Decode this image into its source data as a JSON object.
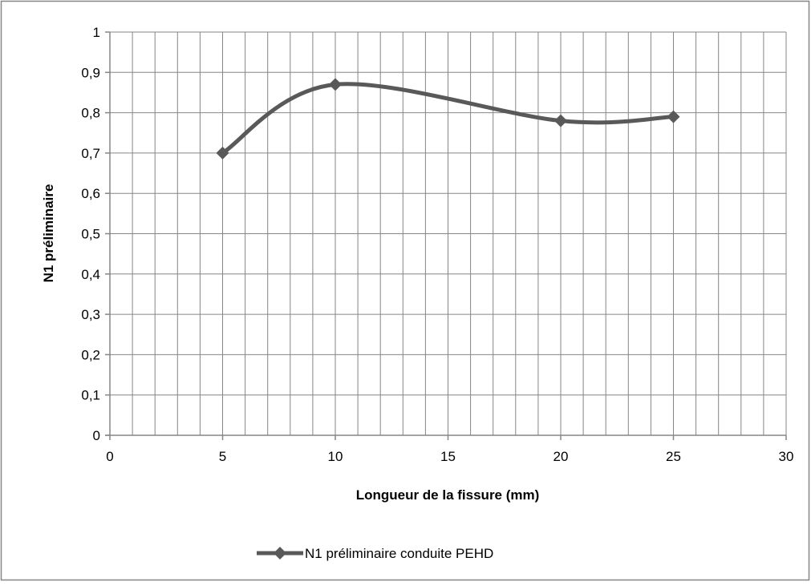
{
  "chart_data": {
    "type": "line",
    "title": "",
    "xlabel": "Longueur de la fissure (mm)",
    "ylabel": "N1 préliminaire",
    "xlim": [
      0,
      30
    ],
    "ylim": [
      0,
      1
    ],
    "x_ticks": [
      0,
      5,
      10,
      15,
      20,
      25,
      30
    ],
    "y_ticks": [
      0,
      0.1,
      0.2,
      0.3,
      0.4,
      0.5,
      0.6,
      0.7,
      0.8,
      0.9,
      1
    ],
    "x_tick_labels": [
      "0",
      "5",
      "10",
      "15",
      "20",
      "25",
      "30"
    ],
    "y_tick_labels": [
      "0",
      "0,1",
      "0,2",
      "0,3",
      "0,4",
      "0,5",
      "0,6",
      "0,7",
      "0,8",
      "0,9",
      "1"
    ],
    "grid": true,
    "minor_x_grid_step": 1,
    "smooth": true,
    "marker": "diamond",
    "legend_position": "bottom",
    "series": [
      {
        "name": "N1 préliminaire conduite PEHD",
        "color": "#595959",
        "x": [
          5,
          10,
          20,
          25
        ],
        "y": [
          0.7,
          0.87,
          0.78,
          0.79
        ]
      }
    ]
  }
}
